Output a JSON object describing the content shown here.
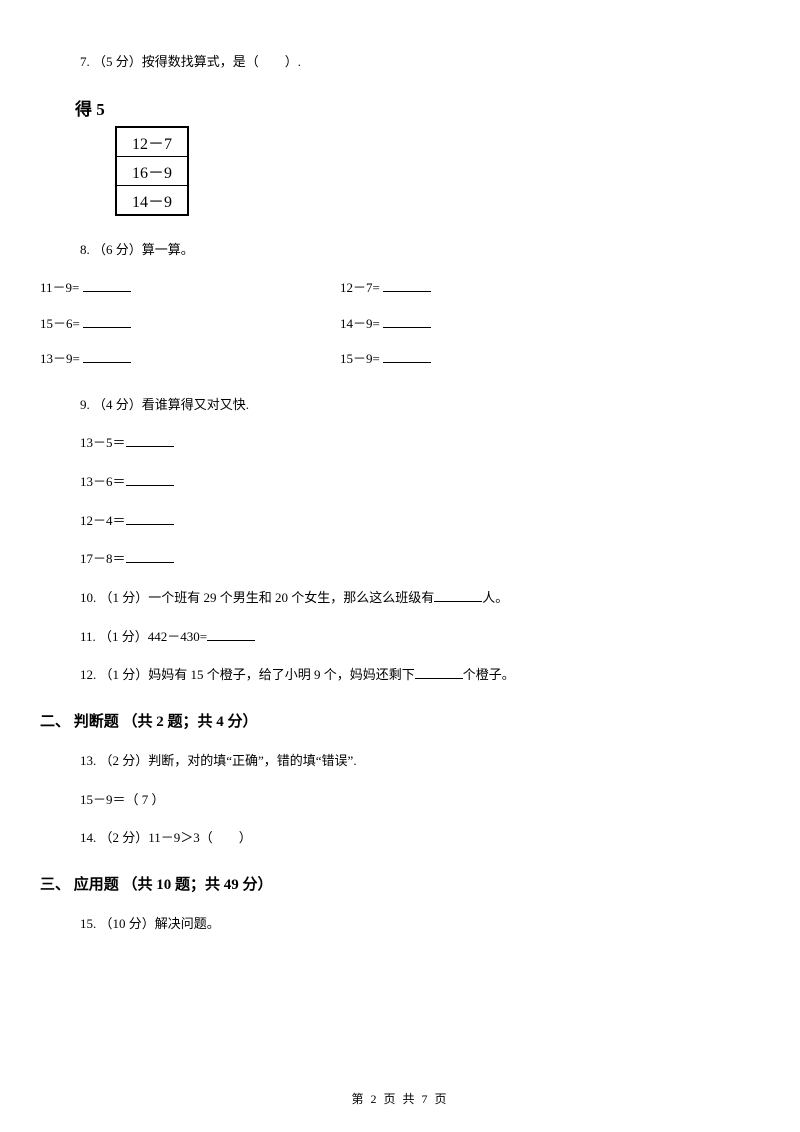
{
  "q7": {
    "text": "7. （5 分）按得数找算式，是（　　）.",
    "box_title": "得 5",
    "box_cells": [
      "12－7",
      "16－9",
      "14－9"
    ]
  },
  "q8": {
    "text": "8. （6 分）算一算。",
    "rows": [
      {
        "left": "11－9=",
        "right": "12－7="
      },
      {
        "left": "15－6=",
        "right": "14－9="
      },
      {
        "left": "13－9=",
        "right": "15－9="
      }
    ]
  },
  "q9": {
    "text": "9. （4 分）看谁算得又对又快.",
    "items": [
      "13－5＝",
      "13－6＝",
      "12－4＝",
      "17－8＝"
    ]
  },
  "q10": {
    "prefix": "10. （1 分）一个班有 29 个男生和 20 个女生，那么这么班级有",
    "suffix": "人。"
  },
  "q11": {
    "prefix": "11. （1 分）442－430="
  },
  "q12": {
    "prefix": "12. （1 分）妈妈有 15 个橙子，给了小明 9 个，妈妈还剩下",
    "suffix": "个橙子。"
  },
  "section2": {
    "heading": "二、 判断题 （共 2 题；共 4 分）"
  },
  "q13": {
    "text": "13. （2 分）判断，对的填“正确”，错的填“错误”.",
    "sub": "15－9＝（ 7 ）"
  },
  "q14": {
    "text": "14. （2 分）11－9＞3（　　）"
  },
  "section3": {
    "heading": "三、 应用题 （共 10 题；共 49 分）"
  },
  "q15": {
    "text": "15. （10 分）解决问题。"
  },
  "footer": {
    "text": "第 2 页 共 7 页"
  },
  "colors": {
    "text": "#000000",
    "background": "#ffffff",
    "border": "#000000"
  }
}
